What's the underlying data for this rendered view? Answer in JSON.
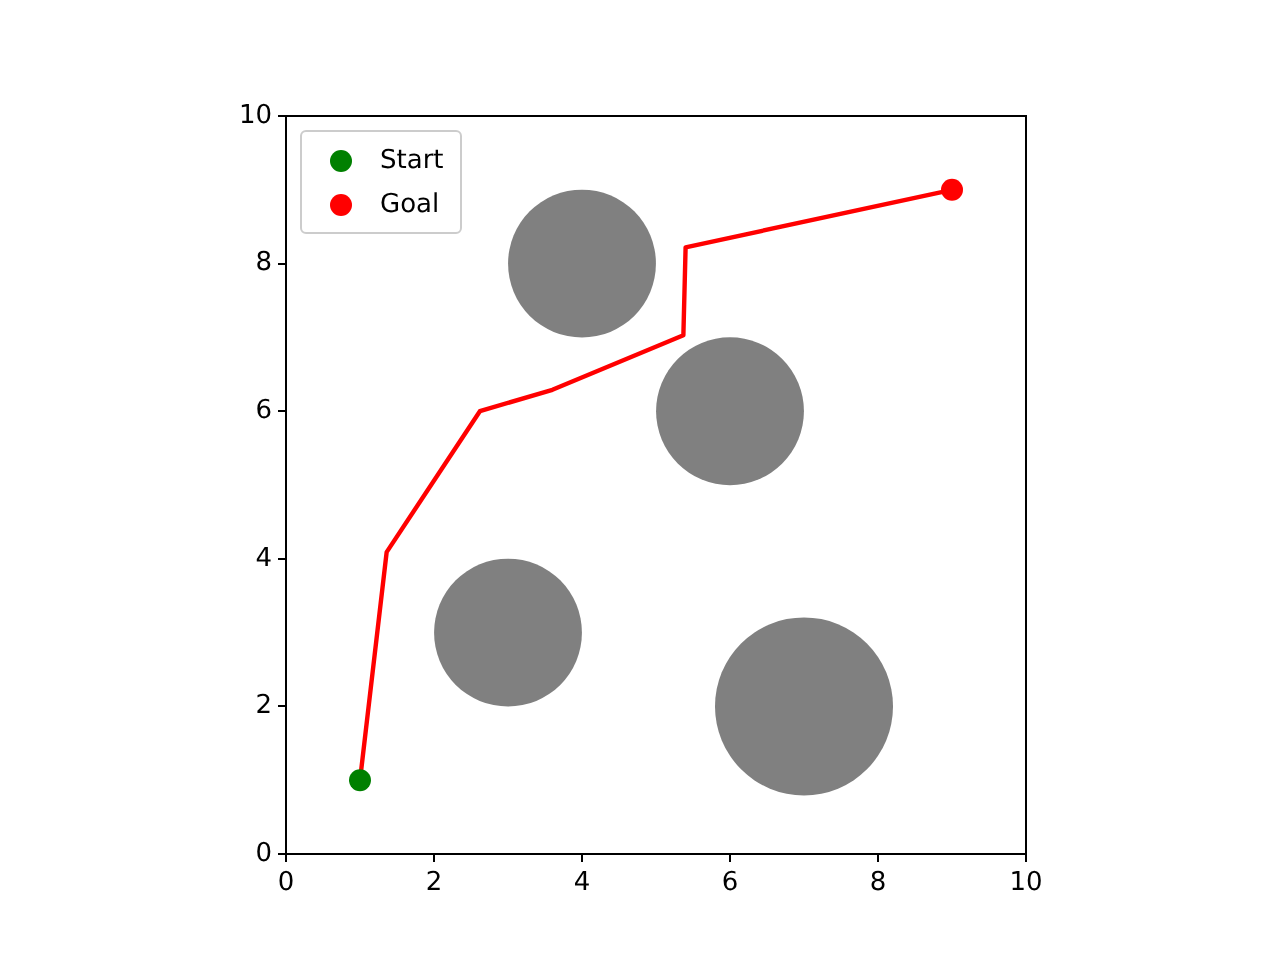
{
  "chart_data": {
    "type": "line",
    "xlim": [
      0,
      10
    ],
    "ylim": [
      0,
      10
    ],
    "xticks": [
      0,
      2,
      4,
      6,
      8,
      10
    ],
    "yticks": [
      0,
      2,
      4,
      6,
      8,
      10
    ],
    "legend": "top left",
    "series": [
      {
        "type": "bubble",
        "color": "#808080",
        "x": [
          4,
          6,
          3,
          7
        ],
        "values": [
          8,
          6,
          3,
          2
        ],
        "sizes": [
          0.69,
          0.69,
          0.69,
          1
        ]
      },
      {
        "color": "#ff0000",
        "x": [
          1,
          1.36,
          2.62,
          3.6,
          5.37,
          5.4,
          9
        ],
        "values": [
          1,
          4.09,
          6,
          6.29,
          7.03,
          8.22,
          9
        ],
        "marker": "none"
      },
      {
        "type": "scatter",
        "name": "Start",
        "color": "#008000",
        "x": [
          1
        ],
        "values": [
          1
        ],
        "marker": "circle"
      },
      {
        "type": "scatter",
        "name": "Goal",
        "color": "#ff0000",
        "x": [
          9
        ],
        "values": [
          9
        ],
        "marker": "circle"
      }
    ]
  }
}
